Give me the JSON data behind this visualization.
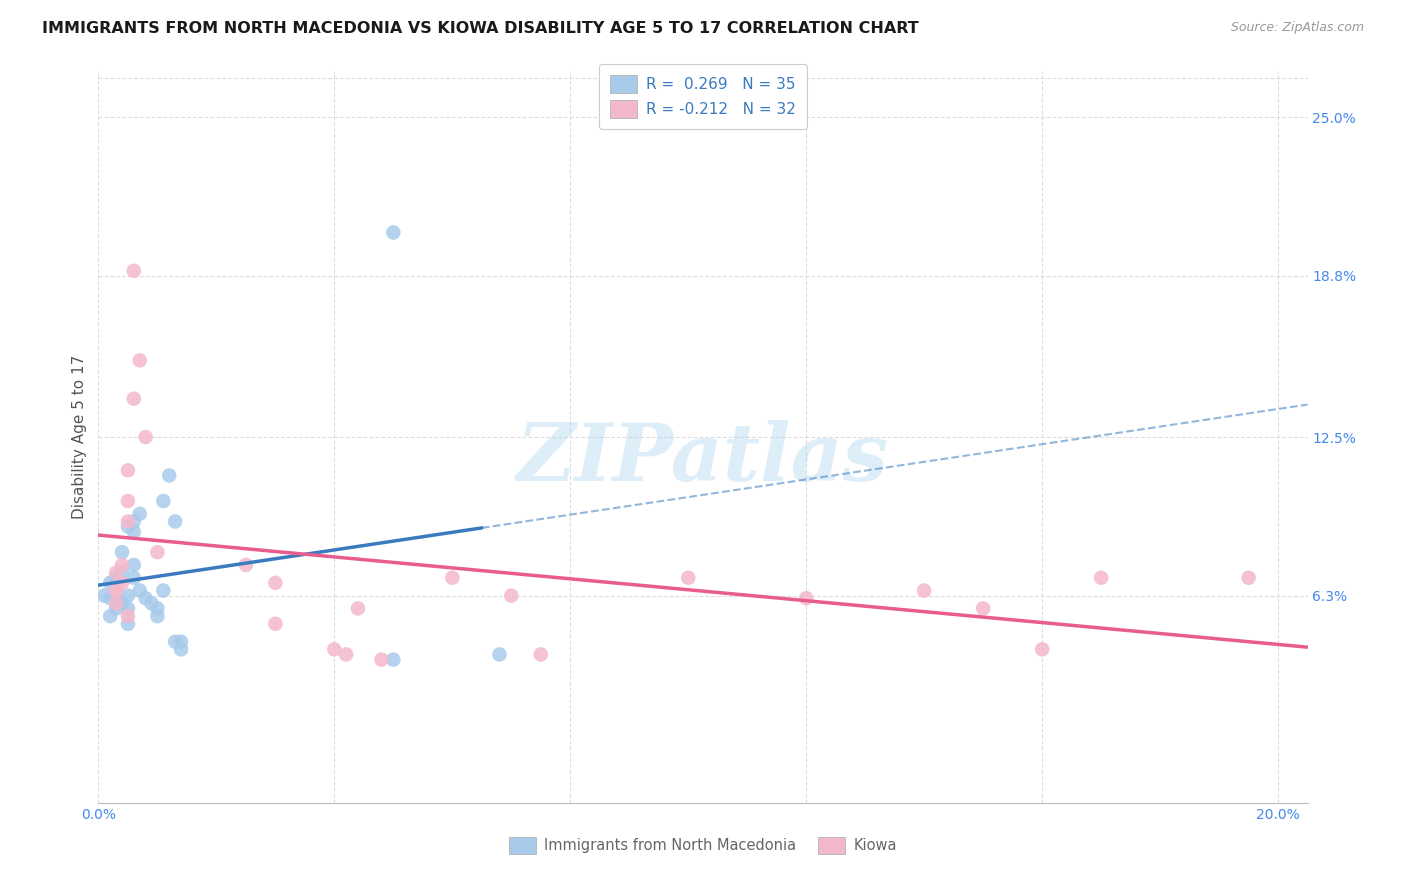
{
  "title": "IMMIGRANTS FROM NORTH MACEDONIA VS KIOWA DISABILITY AGE 5 TO 17 CORRELATION CHART",
  "source": "Source: ZipAtlas.com",
  "ylabel": "Disability Age 5 to 17",
  "xlim": [
    0.0,
    0.205
  ],
  "ylim": [
    -0.018,
    0.268
  ],
  "right_yticks": [
    0.063,
    0.125,
    0.188,
    0.25
  ],
  "right_yticklabels": [
    "6.3%",
    "12.5%",
    "18.8%",
    "25.0%"
  ],
  "xtick_positions": [
    0.0,
    0.04,
    0.08,
    0.12,
    0.16,
    0.2
  ],
  "xtick_labels": [
    "0.0%",
    "",
    "",
    "",
    "",
    "20.0%"
  ],
  "blue_R": 0.269,
  "blue_N": 35,
  "pink_R": -0.212,
  "pink_N": 32,
  "blue_color": "#a8caeb",
  "pink_color": "#f4b8cc",
  "blue_line_color": "#3a7bbf",
  "pink_line_color": "#e85c90",
  "legend_text_color": "#3a7bbf",
  "blue_scatter": [
    [
      0.001,
      0.063
    ],
    [
      0.002,
      0.055
    ],
    [
      0.002,
      0.068
    ],
    [
      0.002,
      0.062
    ],
    [
      0.003,
      0.058
    ],
    [
      0.003,
      0.065
    ],
    [
      0.003,
      0.07
    ],
    [
      0.003,
      0.062
    ],
    [
      0.004,
      0.06
    ],
    [
      0.004,
      0.072
    ],
    [
      0.004,
      0.08
    ],
    [
      0.005,
      0.09
    ],
    [
      0.005,
      0.058
    ],
    [
      0.005,
      0.063
    ],
    [
      0.005,
      0.052
    ],
    [
      0.006,
      0.092
    ],
    [
      0.006,
      0.088
    ],
    [
      0.006,
      0.07
    ],
    [
      0.006,
      0.075
    ],
    [
      0.007,
      0.095
    ],
    [
      0.007,
      0.065
    ],
    [
      0.008,
      0.062
    ],
    [
      0.009,
      0.06
    ],
    [
      0.01,
      0.055
    ],
    [
      0.01,
      0.058
    ],
    [
      0.011,
      0.1
    ],
    [
      0.011,
      0.065
    ],
    [
      0.012,
      0.11
    ],
    [
      0.013,
      0.092
    ],
    [
      0.013,
      0.045
    ],
    [
      0.014,
      0.042
    ],
    [
      0.014,
      0.045
    ],
    [
      0.05,
      0.038
    ],
    [
      0.068,
      0.04
    ],
    [
      0.05,
      0.205
    ]
  ],
  "pink_scatter": [
    [
      0.003,
      0.065
    ],
    [
      0.003,
      0.072
    ],
    [
      0.003,
      0.06
    ],
    [
      0.003,
      0.065
    ],
    [
      0.004,
      0.068
    ],
    [
      0.004,
      0.075
    ],
    [
      0.005,
      0.1
    ],
    [
      0.005,
      0.092
    ],
    [
      0.005,
      0.112
    ],
    [
      0.005,
      0.055
    ],
    [
      0.006,
      0.14
    ],
    [
      0.006,
      0.19
    ],
    [
      0.007,
      0.155
    ],
    [
      0.008,
      0.125
    ],
    [
      0.01,
      0.08
    ],
    [
      0.025,
      0.075
    ],
    [
      0.03,
      0.068
    ],
    [
      0.03,
      0.052
    ],
    [
      0.04,
      0.042
    ],
    [
      0.042,
      0.04
    ],
    [
      0.044,
      0.058
    ],
    [
      0.048,
      0.038
    ],
    [
      0.06,
      0.07
    ],
    [
      0.07,
      0.063
    ],
    [
      0.075,
      0.04
    ],
    [
      0.1,
      0.07
    ],
    [
      0.12,
      0.062
    ],
    [
      0.14,
      0.065
    ],
    [
      0.15,
      0.058
    ],
    [
      0.16,
      0.042
    ],
    [
      0.17,
      0.07
    ],
    [
      0.195,
      0.07
    ]
  ],
  "watermark": "ZIPatlas",
  "grid_color": "#dddddd",
  "right_tick_color": "#4488ee",
  "xtick_color": "#4488ee"
}
